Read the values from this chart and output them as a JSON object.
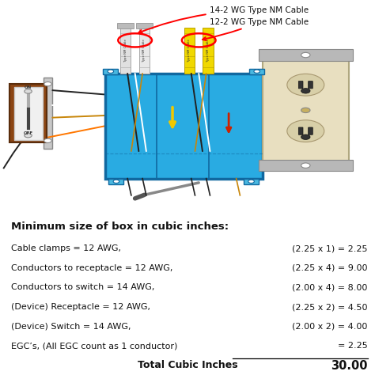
{
  "title": "Minimum size of box in cubic inches:",
  "rows": [
    {
      "left": "Cable clamps = 12 AWG,",
      "right": "(2.25 x 1) = 2.25",
      "underline": false
    },
    {
      "left": "Conductors to receptacle = 12 AWG,",
      "right": "(2.25 x 4) = 9.00",
      "underline": false
    },
    {
      "left": "Conductors to switch = 14 AWG,",
      "right": "(2.00 x 4) = 8.00",
      "underline": false
    },
    {
      "left": "(Device) Receptacle = 12 AWG,",
      "right": "(2.25 x 2) = 4.50",
      "underline": false
    },
    {
      "left": "(Device) Switch = 14 AWG,",
      "right": "(2.00 x 2) = 4.00",
      "underline": false
    },
    {
      "left": "EGC’s, (All EGC count as 1 conductor)",
      "right": "= 2.25",
      "underline": true
    }
  ],
  "total_label": "Total Cubic Inches",
  "total_value": "30.00",
  "label_14awg": "14-2 WG Type NM Cable",
  "label_12awg": "12-2 WG Type NM Cable",
  "bg_color": "#ffffff",
  "text_color": "#111111",
  "box_color": "#29abe2",
  "box_edge": "#1068a0"
}
